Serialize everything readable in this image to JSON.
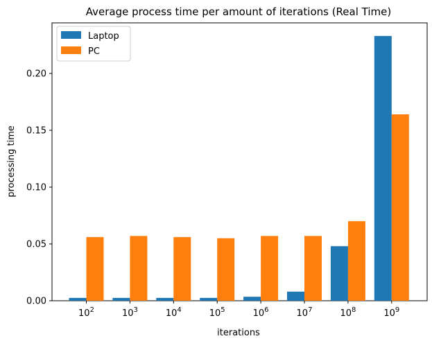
{
  "chart_data": {
    "type": "bar",
    "title": "Average process time per amount of iterations (Real Time)",
    "xlabel": "iterations",
    "ylabel": "processing time",
    "categories": [
      {
        "base": "10",
        "exp": "2"
      },
      {
        "base": "10",
        "exp": "3"
      },
      {
        "base": "10",
        "exp": "4"
      },
      {
        "base": "10",
        "exp": "5"
      },
      {
        "base": "10",
        "exp": "6"
      },
      {
        "base": "10",
        "exp": "7"
      },
      {
        "base": "10",
        "exp": "8"
      },
      {
        "base": "10",
        "exp": "9"
      }
    ],
    "series": [
      {
        "name": "Laptop",
        "color": "#1f77b4",
        "values": [
          0.0025,
          0.0025,
          0.0025,
          0.0025,
          0.0035,
          0.008,
          0.048,
          0.233
        ]
      },
      {
        "name": "PC",
        "color": "#ff7f0e",
        "values": [
          0.056,
          0.057,
          0.056,
          0.055,
          0.057,
          0.057,
          0.07,
          0.164
        ]
      }
    ],
    "ylim": [
      0,
      0.2445
    ],
    "yticks": [
      0.0,
      0.05,
      0.1,
      0.15,
      0.2
    ],
    "ytick_labels": [
      "0.00",
      "0.05",
      "0.10",
      "0.15",
      "0.20"
    ],
    "legend_position": "top-left",
    "grid": false
  }
}
